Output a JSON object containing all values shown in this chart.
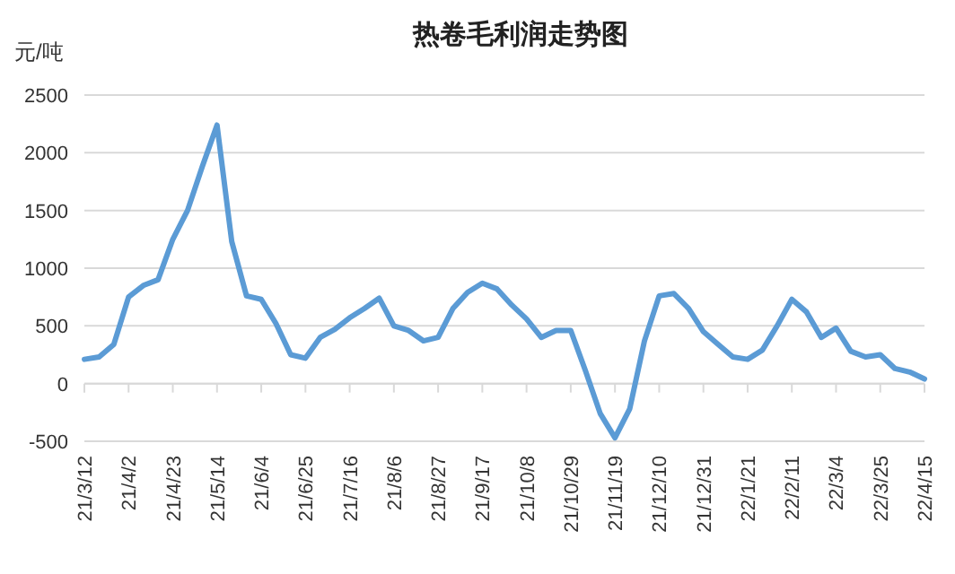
{
  "chart_data": {
    "type": "line",
    "title": "热卷毛利润走势图",
    "ylabel": "元/吨",
    "categories": [
      "21/3/12",
      null,
      null,
      "21/4/2",
      null,
      null,
      "21/4/23",
      null,
      null,
      "21/5/14",
      null,
      null,
      "21/6/4",
      null,
      null,
      "21/6/25",
      null,
      null,
      "21/7/16",
      null,
      null,
      "21/8/6",
      null,
      null,
      "21/8/27",
      null,
      null,
      "21/9/17",
      null,
      null,
      "21/10/8",
      null,
      null,
      "21/10/29",
      null,
      null,
      "21/11/19",
      null,
      null,
      "21/12/10",
      null,
      null,
      "21/12/31",
      null,
      null,
      "22/1/21",
      null,
      null,
      "22/2/11",
      null,
      null,
      "22/3/4",
      null,
      null,
      "22/3/25",
      null,
      null,
      "22/4/15"
    ],
    "series": [
      {
        "color": "#5b9bd5",
        "values": [
          210,
          230,
          340,
          750,
          850,
          900,
          1250,
          1500,
          1880,
          2240,
          1230,
          760,
          730,
          520,
          250,
          220,
          400,
          470,
          570,
          650,
          740,
          500,
          460,
          370,
          400,
          650,
          790,
          870,
          820,
          680,
          560,
          400,
          460,
          460,
          110,
          -260,
          -470,
          -220,
          370,
          760,
          780,
          650,
          450,
          340,
          230,
          210,
          290,
          500,
          730,
          620,
          400,
          480,
          280,
          230,
          250,
          130,
          100,
          40
        ]
      }
    ],
    "ylim": [
      -500,
      2500
    ],
    "yticks": [
      -500,
      0,
      500,
      1000,
      1500,
      2000,
      2500
    ],
    "grid": "y",
    "marker": "none",
    "line_style": "solid"
  }
}
